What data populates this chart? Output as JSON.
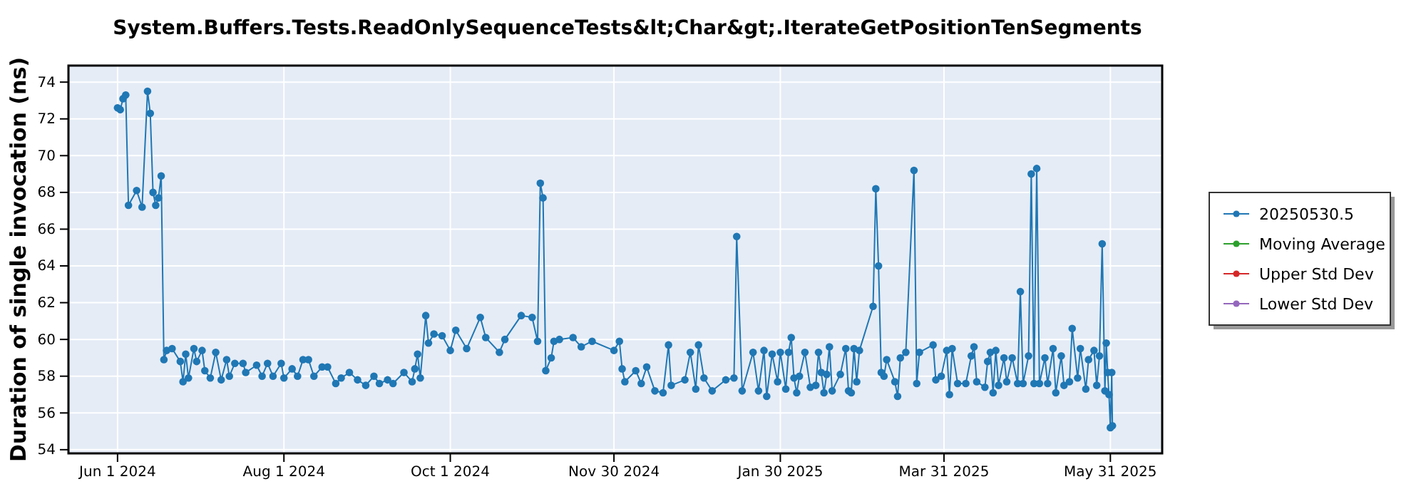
{
  "chart_data": {
    "type": "line",
    "title": "System.Buffers.Tests.ReadOnlySequenceTests&lt;Char&gt;.IterateGetPositionTenSegments",
    "ylabel": "Duration of single invocation (ns)",
    "xlim": [
      "2024-05-14",
      "2025-06-19"
    ],
    "ylim": [
      53.8,
      74.9
    ],
    "xticks": [
      {
        "value": "2024-06-01",
        "label": "Jun 1 2024"
      },
      {
        "value": "2024-08-01",
        "label": "Aug 1 2024"
      },
      {
        "value": "2024-10-01",
        "label": "Oct 1 2024"
      },
      {
        "value": "2024-11-30",
        "label": "Nov 30 2024"
      },
      {
        "value": "2025-01-30",
        "label": "Jan 30 2025"
      },
      {
        "value": "2025-03-31",
        "label": "Mar 31 2025"
      },
      {
        "value": "2025-05-31",
        "label": "May 31 2025"
      }
    ],
    "yticks": [
      54,
      56,
      58,
      60,
      62,
      64,
      66,
      68,
      70,
      72,
      74
    ],
    "grid": true,
    "legend": "right",
    "marker": "circle",
    "line_style": "solid",
    "series": [
      {
        "name": "20250530.5",
        "color": "#1f77b4",
        "x": [
          "2024-06-01",
          "2024-06-02",
          "2024-06-03",
          "2024-06-04",
          "2024-06-05",
          "2024-06-08",
          "2024-06-10",
          "2024-06-12",
          "2024-06-13",
          "2024-06-14",
          "2024-06-15",
          "2024-06-16",
          "2024-06-17",
          "2024-06-18",
          "2024-06-19",
          "2024-06-21",
          "2024-06-24",
          "2024-06-25",
          "2024-06-26",
          "2024-06-27",
          "2024-06-29",
          "2024-06-30",
          "2024-07-02",
          "2024-07-03",
          "2024-07-05",
          "2024-07-07",
          "2024-07-09",
          "2024-07-11",
          "2024-07-12",
          "2024-07-14",
          "2024-07-17",
          "2024-07-18",
          "2024-07-22",
          "2024-07-24",
          "2024-07-26",
          "2024-07-28",
          "2024-07-31",
          "2024-08-01",
          "2024-08-04",
          "2024-08-06",
          "2024-08-08",
          "2024-08-10",
          "2024-08-12",
          "2024-08-15",
          "2024-08-17",
          "2024-08-20",
          "2024-08-22",
          "2024-08-25",
          "2024-08-28",
          "2024-08-31",
          "2024-09-03",
          "2024-09-05",
          "2024-09-08",
          "2024-09-10",
          "2024-09-14",
          "2024-09-17",
          "2024-09-18",
          "2024-09-19",
          "2024-09-20",
          "2024-09-22",
          "2024-09-23",
          "2024-09-25",
          "2024-09-28",
          "2024-10-01",
          "2024-10-03",
          "2024-10-07",
          "2024-10-12",
          "2024-10-14",
          "2024-10-19",
          "2024-10-21",
          "2024-10-27",
          "2024-10-31",
          "2024-11-02",
          "2024-11-03",
          "2024-11-04",
          "2024-11-05",
          "2024-11-07",
          "2024-11-08",
          "2024-11-10",
          "2024-11-15",
          "2024-11-18",
          "2024-11-22",
          "2024-11-30",
          "2024-12-02",
          "2024-12-03",
          "2024-12-04",
          "2024-12-08",
          "2024-12-10",
          "2024-12-12",
          "2024-12-15",
          "2024-12-18",
          "2024-12-20",
          "2024-12-21",
          "2024-12-26",
          "2024-12-28",
          "2024-12-30",
          "2024-12-31",
          "2025-01-02",
          "2025-01-05",
          "2025-01-10",
          "2025-01-13",
          "2025-01-14",
          "2025-01-16",
          "2025-01-20",
          "2025-01-22",
          "2025-01-24",
          "2025-01-25",
          "2025-01-27",
          "2025-01-29",
          "2025-01-30",
          "2025-02-01",
          "2025-02-02",
          "2025-02-03",
          "2025-02-04",
          "2025-02-05",
          "2025-02-06",
          "2025-02-08",
          "2025-02-10",
          "2025-02-12",
          "2025-02-13",
          "2025-02-14",
          "2025-02-15",
          "2025-02-16",
          "2025-02-17",
          "2025-02-18",
          "2025-02-21",
          "2025-02-23",
          "2025-02-24",
          "2025-02-25",
          "2025-02-26",
          "2025-02-27",
          "2025-02-28",
          "2025-03-05",
          "2025-03-06",
          "2025-03-07",
          "2025-03-08",
          "2025-03-09",
          "2025-03-10",
          "2025-03-13",
          "2025-03-14",
          "2025-03-15",
          "2025-03-17",
          "2025-03-20",
          "2025-03-21",
          "2025-03-22",
          "2025-03-27",
          "2025-03-28",
          "2025-03-30",
          "2025-04-01",
          "2025-04-02",
          "2025-04-03",
          "2025-04-05",
          "2025-04-08",
          "2025-04-10",
          "2025-04-11",
          "2025-04-12",
          "2025-04-15",
          "2025-04-16",
          "2025-04-17",
          "2025-04-18",
          "2025-04-19",
          "2025-04-20",
          "2025-04-22",
          "2025-04-23",
          "2025-04-25",
          "2025-04-27",
          "2025-04-28",
          "2025-04-29",
          "2025-05-01",
          "2025-05-02",
          "2025-05-03",
          "2025-05-04",
          "2025-05-05",
          "2025-05-07",
          "2025-05-08",
          "2025-05-10",
          "2025-05-11",
          "2025-05-13",
          "2025-05-14",
          "2025-05-16",
          "2025-05-17",
          "2025-05-19",
          "2025-05-20",
          "2025-05-22",
          "2025-05-23",
          "2025-05-25",
          "2025-05-26",
          "2025-05-27",
          "2025-05-28",
          "2025-05-29",
          "2025-05-29T12:00",
          "2025-05-30",
          "2025-05-30T12:00",
          "2025-05-31",
          "2025-05-31T12:00",
          "2025-05-31T18:00"
        ],
        "values": [
          72.6,
          72.5,
          73.1,
          73.3,
          67.3,
          68.1,
          67.2,
          73.5,
          72.3,
          68.0,
          67.3,
          67.7,
          68.9,
          58.9,
          59.4,
          59.5,
          58.8,
          57.7,
          59.2,
          57.9,
          59.5,
          58.8,
          59.4,
          58.3,
          57.9,
          59.3,
          57.8,
          58.9,
          58.0,
          58.7,
          58.7,
          58.2,
          58.6,
          58.0,
          58.7,
          58.0,
          58.7,
          57.9,
          58.4,
          58.0,
          58.9,
          58.9,
          58.0,
          58.5,
          58.5,
          57.6,
          57.9,
          58.2,
          57.8,
          57.5,
          58.0,
          57.6,
          57.8,
          57.6,
          58.2,
          57.7,
          58.4,
          59.2,
          57.9,
          61.3,
          59.8,
          60.3,
          60.2,
          59.4,
          60.5,
          59.5,
          61.2,
          60.1,
          59.3,
          60.0,
          61.3,
          61.2,
          59.9,
          68.5,
          67.7,
          58.3,
          59.0,
          59.9,
          60.0,
          60.1,
          59.6,
          59.9,
          59.4,
          59.9,
          58.4,
          57.7,
          58.3,
          57.6,
          58.5,
          57.2,
          57.1,
          59.7,
          57.5,
          57.8,
          59.3,
          57.3,
          59.7,
          57.9,
          57.2,
          57.8,
          57.9,
          65.6,
          57.2,
          59.3,
          57.2,
          59.4,
          56.9,
          59.2,
          57.7,
          59.3,
          57.3,
          59.3,
          60.1,
          57.9,
          57.1,
          58.0,
          59.3,
          57.4,
          57.5,
          59.3,
          58.2,
          57.1,
          58.1,
          59.6,
          57.2,
          58.1,
          59.5,
          57.2,
          57.1,
          59.5,
          57.7,
          59.4,
          61.8,
          68.2,
          64.0,
          58.2,
          58.0,
          58.9,
          57.7,
          56.9,
          59.0,
          59.3,
          69.2,
          57.6,
          59.3,
          59.7,
          57.8,
          58.0,
          59.4,
          57.0,
          59.5,
          57.6,
          57.6,
          59.1,
          59.6,
          57.7,
          57.4,
          58.8,
          59.3,
          57.1,
          59.4,
          57.5,
          59.0,
          57.7,
          59.0,
          57.6,
          62.6,
          57.6,
          59.1,
          69.0,
          57.6,
          69.3,
          57.6,
          59.0,
          57.6,
          59.5,
          57.1,
          59.1,
          57.5,
          57.7,
          60.6,
          57.9,
          59.5,
          57.3,
          58.9,
          59.4,
          57.5,
          59.1,
          65.2,
          57.2,
          59.8,
          58.2,
          57.0,
          55.2,
          58.2,
          55.3
        ]
      },
      {
        "name": "Moving Average",
        "color": "#2ca02c"
      },
      {
        "name": "Upper Std Dev",
        "color": "#d62728"
      },
      {
        "name": "Lower Std Dev",
        "color": "#9467bd"
      }
    ]
  }
}
